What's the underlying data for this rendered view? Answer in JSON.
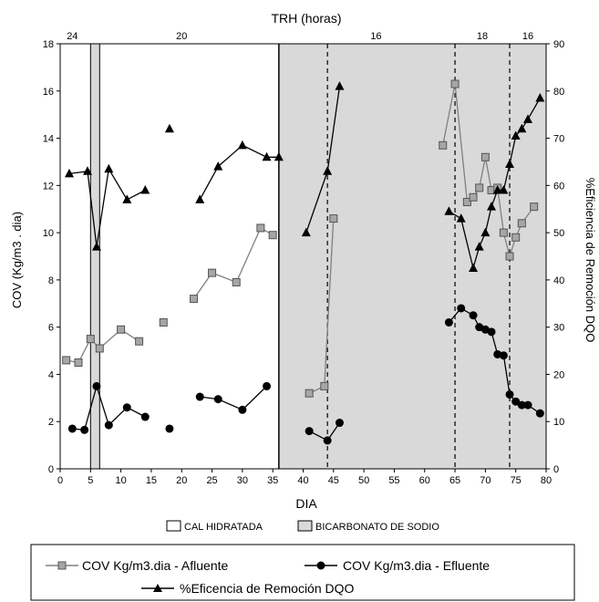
{
  "chart_data": {
    "type": "line",
    "top_axis_label": "TRH (horas)",
    "top_segments": [
      {
        "label": "24",
        "x": 2
      },
      {
        "label": "20",
        "x": 20
      },
      {
        "label": "16",
        "x": 52
      },
      {
        "label": "18",
        "x": 69.5
      },
      {
        "label": "16",
        "x": 77
      }
    ],
    "xlabel": "DIA",
    "ylabel_left": "COV  (Kg/m3 . dia)",
    "ylabel_right": "%Eficiencia de Remoción DQO",
    "xlim": [
      0,
      80
    ],
    "ylim_left": [
      0,
      18
    ],
    "ylim_right": [
      0,
      90
    ],
    "xticks": [
      "0",
      "5",
      "10",
      "15",
      "20",
      "25",
      "30",
      "35",
      "40",
      "45",
      "50",
      "55",
      "60",
      "65",
      "70",
      "75",
      "80"
    ],
    "yticks_left": [
      "0",
      "2",
      "4",
      "6",
      "8",
      "10",
      "12",
      "14",
      "16",
      "18"
    ],
    "yticks_right": [
      "0",
      "10",
      "20",
      "30",
      "40",
      "50",
      "60",
      "70",
      "80",
      "90"
    ],
    "regions": {
      "bicarbonato_narrow": [
        5,
        6.5
      ],
      "bicarbonato_main": [
        36,
        80
      ]
    },
    "dashed_lines_x": [
      44,
      65,
      74
    ],
    "region_legend": [
      {
        "name": "CAL HIDRATADA",
        "fill": "#ffffff"
      },
      {
        "name": "BICARBONATO DE SODIO",
        "fill": "#d9d9d9"
      }
    ],
    "series": [
      {
        "name": "COV Kg/m3.dia - Afluente",
        "axis": "left",
        "marker": "square",
        "color": "#808080",
        "segments": [
          [
            [
              1,
              4.6
            ],
            [
              3,
              4.5
            ],
            [
              5,
              5.5
            ],
            [
              6.5,
              5.1
            ],
            [
              10,
              5.9
            ],
            [
              13,
              5.4
            ]
          ],
          [
            [
              17,
              6.2
            ]
          ],
          [
            [
              22,
              7.2
            ],
            [
              25,
              8.3
            ],
            [
              29,
              7.9
            ],
            [
              33,
              10.2
            ],
            [
              35,
              9.9
            ]
          ],
          [
            [
              41,
              3.2
            ],
            [
              43.5,
              3.5
            ],
            [
              45,
              10.6
            ]
          ],
          [
            [
              63,
              13.7
            ],
            [
              65,
              16.3
            ],
            [
              67,
              11.3
            ],
            [
              68,
              11.5
            ],
            [
              69,
              11.9
            ],
            [
              70,
              13.2
            ],
            [
              71,
              11.8
            ],
            [
              72,
              11.9
            ],
            [
              73,
              10.0
            ],
            [
              74,
              9.0
            ],
            [
              75,
              9.8
            ],
            [
              76,
              10.4
            ],
            [
              78,
              11.1
            ]
          ]
        ]
      },
      {
        "name": "COV Kg/m3.dia - Efluente",
        "axis": "left",
        "marker": "circle",
        "color": "#000000",
        "segments": [
          [
            [
              2,
              1.7
            ],
            [
              4,
              1.65
            ],
            [
              6,
              3.5
            ],
            [
              8,
              1.85
            ],
            [
              11,
              2.6
            ],
            [
              14,
              2.2
            ]
          ],
          [
            [
              18,
              1.7
            ]
          ],
          [
            [
              23,
              3.05
            ],
            [
              26,
              2.95
            ],
            [
              30,
              2.5
            ],
            [
              34,
              3.5
            ]
          ],
          [
            [
              41,
              1.6
            ],
            [
              44,
              1.2
            ],
            [
              46,
              1.95
            ]
          ],
          [
            [
              64,
              6.2
            ],
            [
              66,
              6.8
            ],
            [
              68,
              6.5
            ],
            [
              69,
              6.0
            ],
            [
              70,
              5.9
            ],
            [
              71,
              5.8
            ],
            [
              72,
              4.85
            ],
            [
              73,
              4.8
            ],
            [
              74,
              3.15
            ],
            [
              75,
              2.85
            ],
            [
              76,
              2.7
            ],
            [
              77,
              2.7
            ],
            [
              79,
              2.35
            ]
          ]
        ]
      },
      {
        "name": "%Eficencia de Remoción DQO",
        "axis": "right",
        "marker": "triangle",
        "color": "#000000",
        "segments": [
          [
            [
              1.5,
              62.5
            ],
            [
              4.5,
              63
            ],
            [
              6,
              47
            ],
            [
              8,
              63.5
            ],
            [
              11,
              57
            ],
            [
              14,
              59
            ]
          ],
          [
            [
              18,
              72
            ]
          ],
          [
            [
              23,
              57
            ],
            [
              26,
              64
            ],
            [
              30,
              68.5
            ],
            [
              34,
              66
            ],
            [
              36,
              66
            ]
          ],
          [
            [
              40.5,
              50
            ],
            [
              44,
              63
            ],
            [
              46,
              81
            ]
          ],
          [
            [
              64,
              54.5
            ],
            [
              66,
              53
            ],
            [
              68,
              42.5
            ],
            [
              69,
              47
            ],
            [
              70,
              50
            ],
            [
              71,
              55.5
            ],
            [
              72,
              59
            ],
            [
              73,
              59
            ],
            [
              74,
              64.5
            ],
            [
              75,
              70.5
            ],
            [
              76,
              72
            ],
            [
              77,
              74
            ],
            [
              79,
              78.5
            ]
          ]
        ]
      }
    ]
  }
}
